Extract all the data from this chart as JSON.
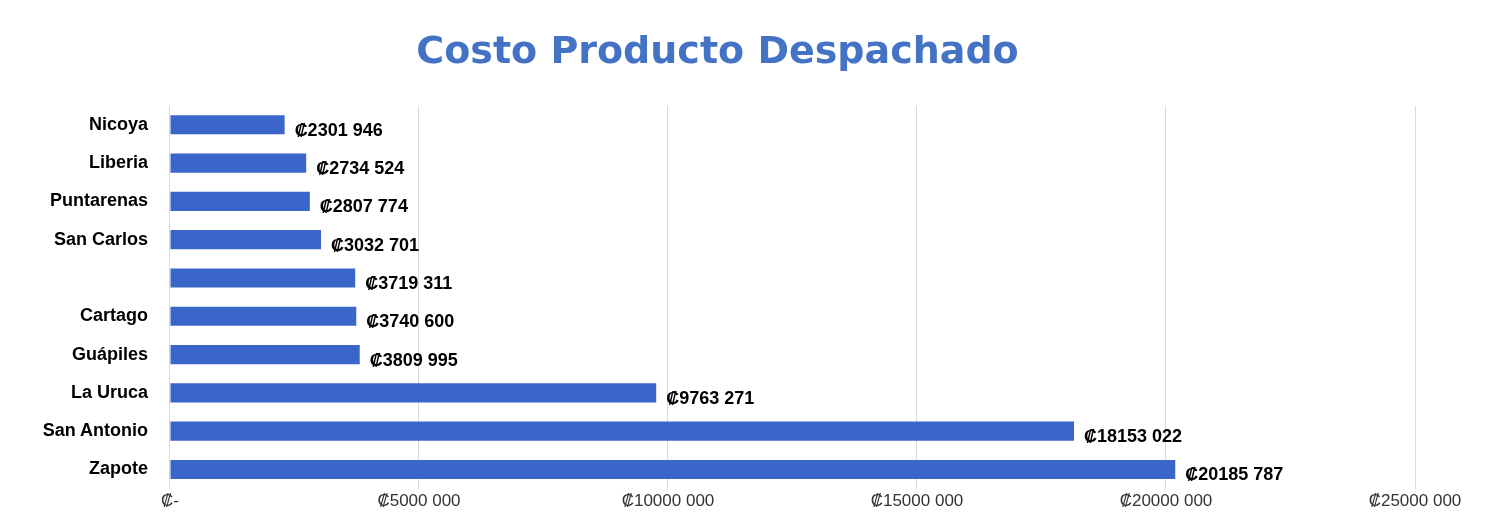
{
  "chart_data": {
    "type": "bar",
    "orientation": "horizontal",
    "title": "Costo Producto Despachado",
    "categories": [
      "Nicoya",
      "Liberia",
      "Puntarenas",
      "San Carlos",
      null,
      "Cartago",
      "Guápiles",
      "La Uruca",
      "San Antonio",
      "Zapote"
    ],
    "values": [
      2301946,
      2734524,
      2807774,
      3032701,
      3719311,
      3740600,
      3809995,
      9763271,
      18153022,
      20185787
    ],
    "value_labels": [
      "₡2301 946",
      "₡2734 524",
      "₡2807 774",
      "₡3032 701",
      "₡3719 311",
      "₡3740 600",
      "₡3809 995",
      "₡9763 271",
      "₡18153 022",
      "₡20185 787"
    ],
    "color": "#3a66c9",
    "xlim": [
      0,
      25000000
    ],
    "xticks": [
      {
        "value": 0,
        "label": "₡-"
      },
      {
        "value": 5000000,
        "label": "₡5000 000"
      },
      {
        "value": 10000000,
        "label": "₡10000 000"
      },
      {
        "value": 15000000,
        "label": "₡15000 000"
      },
      {
        "value": 20000000,
        "label": "₡20000 000"
      },
      {
        "value": 25000000,
        "label": "₡25000 000"
      }
    ],
    "grid": "x",
    "legend": false
  }
}
